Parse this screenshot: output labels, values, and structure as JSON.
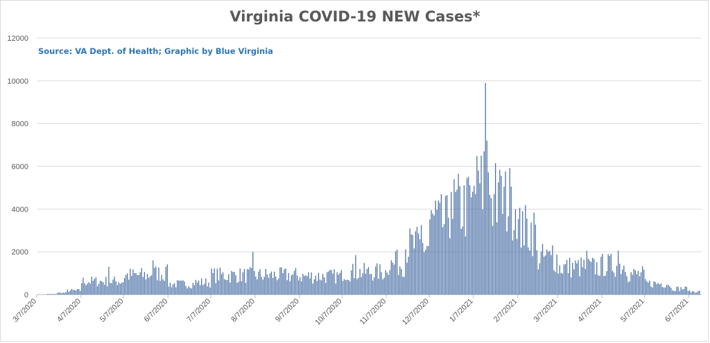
{
  "chart_data": {
    "type": "bar",
    "title": "Virginia COVID-19 NEW Cases*",
    "subtitle": "Source: VA Dept. of Health; Graphic by Blue Virginia",
    "xlabel": "",
    "ylabel": "",
    "ylim": [
      0,
      12000
    ],
    "y_ticks": [
      "0",
      "2000",
      "4000",
      "6000",
      "8000",
      "10000",
      "12000"
    ],
    "x_start": "3/7/2020",
    "x_tick_labels": [
      "3/7/2020",
      "4/7/2020",
      "5/7/2020",
      "6/7/2020",
      "7/7/2020",
      "8/7/2020",
      "9/7/2020",
      "10/7/2020",
      "11/7/2020",
      "12/7/2020",
      "1/7/2021",
      "2/7/2021",
      "3/7/2021",
      "4/7/2021",
      "5/7/2021",
      "6/7/2021"
    ],
    "grid": true,
    "bar_color": "#4a6fa5",
    "weekly_avg_segments": [
      {
        "start": "3/7/2020",
        "end": "3/14/2020",
        "value": 5
      },
      {
        "start": "3/14/2020",
        "end": "3/21/2020",
        "value": 25
      },
      {
        "start": "3/21/2020",
        "end": "3/28/2020",
        "value": 90
      },
      {
        "start": "3/28/2020",
        "end": "4/7/2020",
        "value": 200
      },
      {
        "start": "4/7/2020",
        "end": "5/7/2020",
        "value": 650
      },
      {
        "start": "5/7/2020",
        "end": "5/25/2020",
        "value": 950
      },
      {
        "start": "5/25/2020",
        "end": "6/7/2020",
        "value": 1050
      },
      {
        "start": "6/7/2020",
        "end": "6/25/2020",
        "value": 520
      },
      {
        "start": "6/25/2020",
        "end": "7/7/2020",
        "value": 600
      },
      {
        "start": "7/7/2020",
        "end": "8/7/2020",
        "value": 950
      },
      {
        "start": "8/7/2020",
        "end": "9/7/2020",
        "value": 950
      },
      {
        "start": "9/7/2020",
        "end": "10/7/2020",
        "value": 900
      },
      {
        "start": "10/7/2020",
        "end": "11/7/2020",
        "value": 1100
      },
      {
        "start": "11/7/2020",
        "end": "11/20/2020",
        "value": 1500
      },
      {
        "start": "11/20/2020",
        "end": "12/7/2020",
        "value": 2400
      },
      {
        "start": "12/7/2020",
        "end": "12/20/2020",
        "value": 3500
      },
      {
        "start": "12/20/2020",
        "end": "1/7/2021",
        "value": 4300
      },
      {
        "start": "1/7/2021",
        "end": "1/20/2021",
        "value": 5200
      },
      {
        "start": "1/20/2021",
        "end": "2/7/2021",
        "value": 4600
      },
      {
        "start": "2/7/2021",
        "end": "2/20/2021",
        "value": 3200
      },
      {
        "start": "2/20/2021",
        "end": "3/7/2021",
        "value": 1800
      },
      {
        "start": "3/7/2021",
        "end": "4/7/2021",
        "value": 1350
      },
      {
        "start": "4/7/2021",
        "end": "4/25/2021",
        "value": 1450
      },
      {
        "start": "4/25/2021",
        "end": "5/7/2021",
        "value": 1000
      },
      {
        "start": "5/7/2021",
        "end": "5/25/2021",
        "value": 550
      },
      {
        "start": "5/25/2021",
        "end": "6/7/2021",
        "value": 300
      },
      {
        "start": "6/7/2021",
        "end": "6/15/2021",
        "value": 150
      }
    ],
    "spikes": [
      {
        "date": "4/26/2020",
        "value": 1300
      },
      {
        "date": "5/27/2020",
        "value": 1600
      },
      {
        "date": "6/5/2020",
        "value": 1300
      },
      {
        "date": "8/5/2020",
        "value": 2000
      },
      {
        "date": "10/16/2020",
        "value": 1850
      },
      {
        "date": "11/14/2020",
        "value": 2100
      },
      {
        "date": "12/1/2020",
        "value": 3250
      },
      {
        "date": "12/11/2020",
        "value": 4400
      },
      {
        "date": "12/22/2020",
        "value": 4800
      },
      {
        "date": "1/2/2021",
        "value": 5450
      },
      {
        "date": "1/10/2021",
        "value": 5800
      },
      {
        "date": "1/14/2021",
        "value": 6700
      },
      {
        "date": "1/15/2021",
        "value": 9900
      },
      {
        "date": "1/16/2021",
        "value": 7200
      },
      {
        "date": "1/22/2021",
        "value": 6150
      },
      {
        "date": "1/24/2021",
        "value": 5250
      },
      {
        "date": "2/2/2021",
        "value": 5050
      },
      {
        "date": "2/10/2021",
        "value": 3900
      },
      {
        "date": "3/3/2021",
        "value": 2300
      },
      {
        "date": "3/27/2021",
        "value": 2050
      },
      {
        "date": "4/18/2021",
        "value": 2050
      }
    ]
  }
}
